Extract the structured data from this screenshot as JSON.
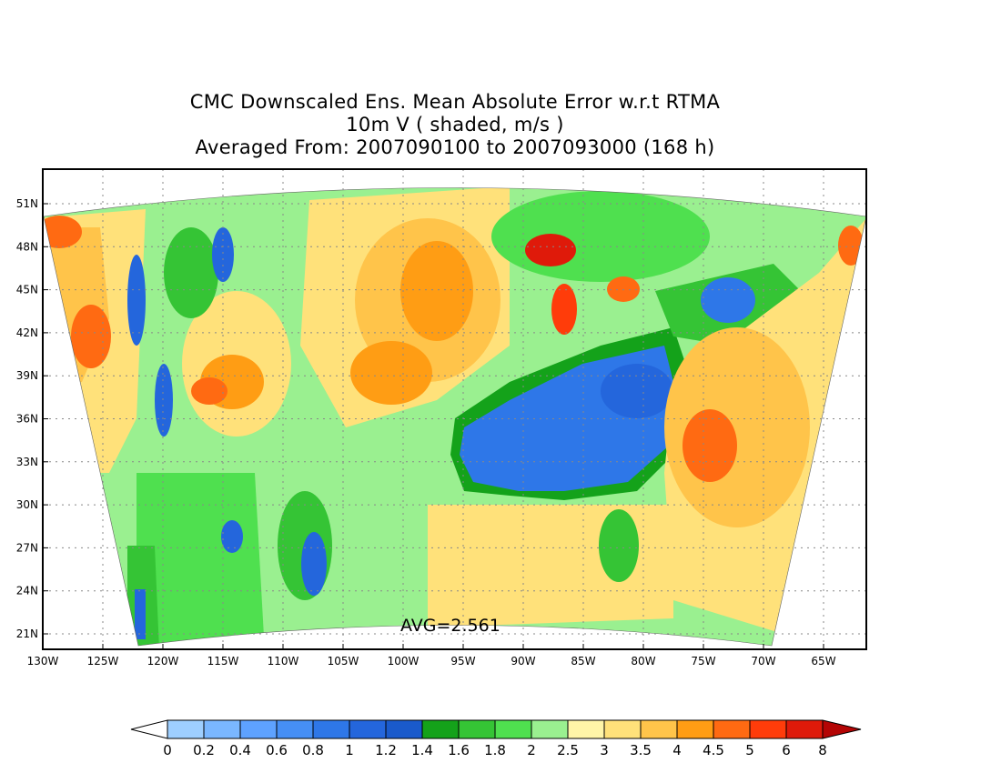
{
  "title": {
    "line1": "CMC Downscaled Ens. Mean Absolute Error w.r.t RTMA",
    "line2": "10m V ( shaded, m/s )",
    "line3": "Averaged From: 2007090100 to 2007093000 (168 h)"
  },
  "annotation": "AVG=2.561",
  "lat_ticks": [
    "51N",
    "48N",
    "45N",
    "42N",
    "39N",
    "36N",
    "33N",
    "30N",
    "27N",
    "24N",
    "21N"
  ],
  "lon_ticks": [
    "130W",
    "125W",
    "120W",
    "115W",
    "110W",
    "105W",
    "100W",
    "95W",
    "90W",
    "85W",
    "80W",
    "75W",
    "70W",
    "65W"
  ],
  "colorbar": {
    "colors": [
      "#9ecfff",
      "#7ab7ff",
      "#5ea2ff",
      "#468ff5",
      "#2e77e8",
      "#2466dc",
      "#1a5acb",
      "#14a21a",
      "#35c435",
      "#4fe04f",
      "#9af090",
      "#fff5a8",
      "#ffe17a",
      "#ffc44a",
      "#ff9d14",
      "#ff6a12",
      "#ff3c0a",
      "#df1a0a",
      "#b40505"
    ],
    "labels": [
      "0",
      "0.2",
      "0.4",
      "0.6",
      "0.8",
      "1",
      "1.2",
      "1.4",
      "1.6",
      "1.8",
      "2",
      "2.5",
      "3",
      "3.5",
      "4",
      "4.5",
      "5",
      "6",
      "8"
    ]
  }
}
